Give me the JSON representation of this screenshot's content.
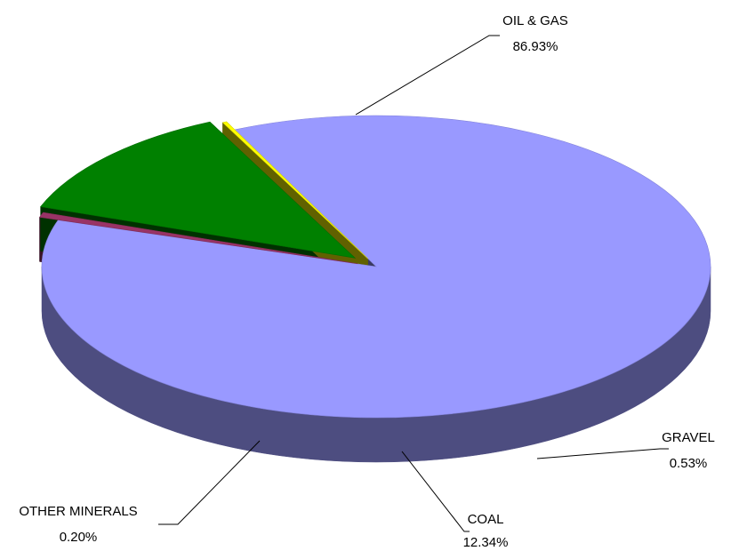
{
  "chart_data": {
    "type": "pie",
    "title": "",
    "style": "3d-exploded",
    "slices": [
      {
        "name": "OIL & GAS",
        "value": 86.93,
        "label": "86.93%",
        "color": "#9999ff"
      },
      {
        "name": "GRAVEL",
        "value": 0.53,
        "label": "0.53%",
        "color": "#993366"
      },
      {
        "name": "COAL",
        "value": 12.34,
        "label": "12.34%",
        "color": "#008000"
      },
      {
        "name": "OTHER MINERALS",
        "value": 0.2,
        "label": "0.20%",
        "color": "#ffff00"
      }
    ]
  }
}
